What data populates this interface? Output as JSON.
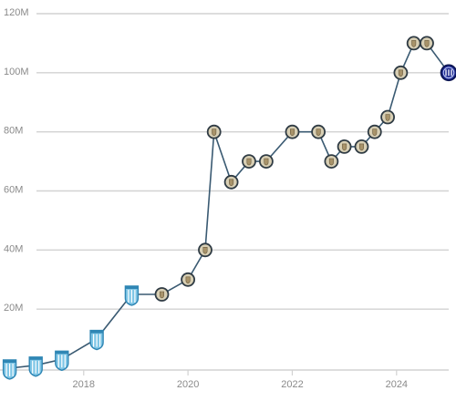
{
  "chart_data": {
    "type": "line",
    "title": "",
    "xlabel": "",
    "ylabel": "",
    "xlim": [
      2016.5,
      2025.0
    ],
    "ylim": [
      0,
      120
    ],
    "grid": true,
    "y_ticks": [
      {
        "value": 20,
        "label": "20M"
      },
      {
        "value": 40,
        "label": "40M"
      },
      {
        "value": 60,
        "label": "60M"
      },
      {
        "value": 80,
        "label": "80M"
      },
      {
        "value": 100,
        "label": "100M"
      },
      {
        "value": 120,
        "label": "120M"
      }
    ],
    "x_ticks": [
      {
        "value": 2018,
        "label": "2018"
      },
      {
        "value": 2020,
        "label": "2020"
      },
      {
        "value": 2022,
        "label": "2022"
      },
      {
        "value": 2024,
        "label": "2024"
      }
    ],
    "series": [
      {
        "color": "#3a5a72",
        "points": [
          {
            "x": 2016.58,
            "y": 0,
            "badge": "crest-icon"
          },
          {
            "x": 2017.08,
            "y": 1,
            "badge": "crest-icon"
          },
          {
            "x": 2017.58,
            "y": 3,
            "badge": "crest-icon"
          },
          {
            "x": 2018.25,
            "y": 10,
            "badge": "crest-icon"
          },
          {
            "x": 2018.92,
            "y": 25,
            "badge": "crest-icon"
          },
          {
            "x": 2019.5,
            "y": 25,
            "badge": "club-icon"
          },
          {
            "x": 2020.0,
            "y": 30,
            "badge": "club-icon"
          },
          {
            "x": 2020.33,
            "y": 40,
            "badge": "club-icon"
          },
          {
            "x": 2020.5,
            "y": 80,
            "badge": "club-icon"
          },
          {
            "x": 2020.83,
            "y": 63,
            "badge": "club-icon"
          },
          {
            "x": 2021.17,
            "y": 70,
            "badge": "club-icon"
          },
          {
            "x": 2021.5,
            "y": 70,
            "badge": "club-icon"
          },
          {
            "x": 2022.0,
            "y": 80,
            "badge": "club-icon"
          },
          {
            "x": 2022.5,
            "y": 80,
            "badge": "club-icon"
          },
          {
            "x": 2022.75,
            "y": 70,
            "badge": "club-icon"
          },
          {
            "x": 2023.0,
            "y": 75,
            "badge": "club-icon"
          },
          {
            "x": 2023.33,
            "y": 75,
            "badge": "club-icon"
          },
          {
            "x": 2023.58,
            "y": 80,
            "badge": "club-icon"
          },
          {
            "x": 2023.83,
            "y": 85,
            "badge": "club-icon"
          },
          {
            "x": 2024.08,
            "y": 100,
            "badge": "club-icon"
          },
          {
            "x": 2024.33,
            "y": 110,
            "badge": "club-icon"
          },
          {
            "x": 2024.58,
            "y": 110,
            "badge": "club-icon"
          },
          {
            "x": 2025.0,
            "y": 100,
            "badge": "inter-icon"
          }
        ]
      }
    ]
  },
  "colors": {
    "line": "#3a5a72",
    "grid": "#d2d2d2",
    "tick_text": "#8a8a8a",
    "crest_fill": "#7fc6e6",
    "crest_stroke": "#2f86b4",
    "club_fill": "#d8cfb4",
    "club_ring": "#2f3b44",
    "inter_fill": "#1d2a8f",
    "inter_ring": "#0b1450"
  }
}
